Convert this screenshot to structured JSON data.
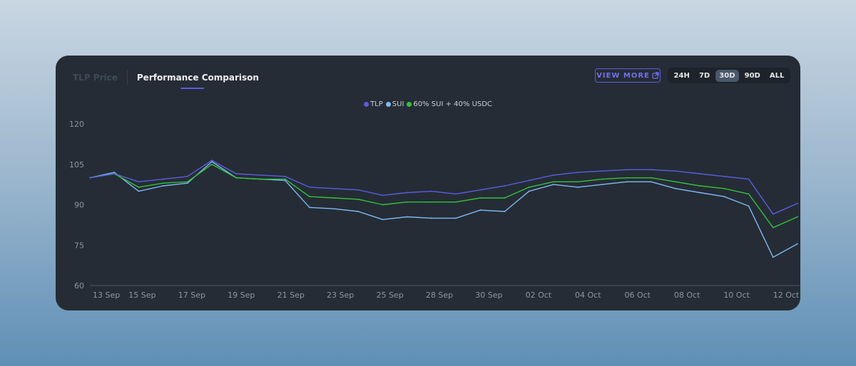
{
  "tabs": {
    "inactive": "TLP Price",
    "active": "Performance Comparison"
  },
  "view_more": {
    "label": "VIEW MORE",
    "icon": "external-link-icon"
  },
  "ranges": [
    "24H",
    "7D",
    "30D",
    "90D",
    "ALL"
  ],
  "active_range": "30D",
  "colors": {
    "TLP": "#5b5ce0",
    "SUI": "#7fb8f2",
    "60% SUI + 40% USDC": "#33c23c",
    "card": "#252c35",
    "accent": "#5b5ce0"
  },
  "chart_data": {
    "type": "line",
    "title": "",
    "xlabel": "",
    "ylabel": "",
    "ylim": [
      60,
      120
    ],
    "yticks": [
      60,
      75,
      90,
      105,
      120
    ],
    "xticks": [
      "13 Sep",
      "15 Sep",
      "17 Sep",
      "19 Sep",
      "21 Sep",
      "23 Sep",
      "25 Sep",
      "28 Sep",
      "30 Sep",
      "02 Oct",
      "04 Oct",
      "06 Oct",
      "08 Oct",
      "10 Oct",
      "12 Oct"
    ],
    "grid": false,
    "legend_position": "top-center",
    "x": [
      "13 Sep",
      "14 Sep",
      "15 Sep",
      "16 Sep",
      "17 Sep",
      "18 Sep",
      "19 Sep",
      "20 Sep",
      "21 Sep",
      "22 Sep",
      "23 Sep",
      "24 Sep",
      "25 Sep",
      "26 Sep",
      "27 Sep",
      "28 Sep",
      "29 Sep",
      "30 Sep",
      "01 Oct",
      "02 Oct",
      "03 Oct",
      "04 Oct",
      "05 Oct",
      "06 Oct",
      "07 Oct",
      "08 Oct",
      "09 Oct",
      "10 Oct",
      "11 Oct",
      "12 Oct"
    ],
    "series": [
      {
        "name": "TLP",
        "values": [
          100.0,
          101.5,
          98.5,
          99.5,
          100.5,
          106.5,
          101.5,
          101.0,
          100.5,
          96.5,
          96.0,
          95.5,
          93.5,
          94.5,
          95.0,
          94.0,
          95.5,
          97.0,
          99.0,
          101.0,
          102.0,
          102.5,
          103.0,
          103.0,
          102.5,
          101.5,
          100.5,
          99.5,
          86.5,
          90.5
        ]
      },
      {
        "name": "SUI",
        "values": [
          100.0,
          102.0,
          95.0,
          97.0,
          98.0,
          106.0,
          100.0,
          99.5,
          99.0,
          89.0,
          88.5,
          87.5,
          84.5,
          85.5,
          85.0,
          85.0,
          88.0,
          87.5,
          95.0,
          97.5,
          96.5,
          97.5,
          98.5,
          98.5,
          96.0,
          94.5,
          93.0,
          89.5,
          70.5,
          75.5
        ]
      },
      {
        "name": "60% SUI + 40% USDC",
        "values": [
          100.0,
          101.5,
          96.5,
          98.0,
          98.5,
          105.0,
          100.0,
          99.5,
          99.5,
          93.0,
          92.5,
          92.0,
          90.0,
          91.0,
          91.0,
          91.0,
          92.5,
          92.5,
          96.5,
          98.5,
          98.5,
          99.5,
          100.0,
          100.0,
          98.5,
          97.0,
          96.0,
          94.0,
          81.5,
          85.5
        ]
      }
    ]
  }
}
